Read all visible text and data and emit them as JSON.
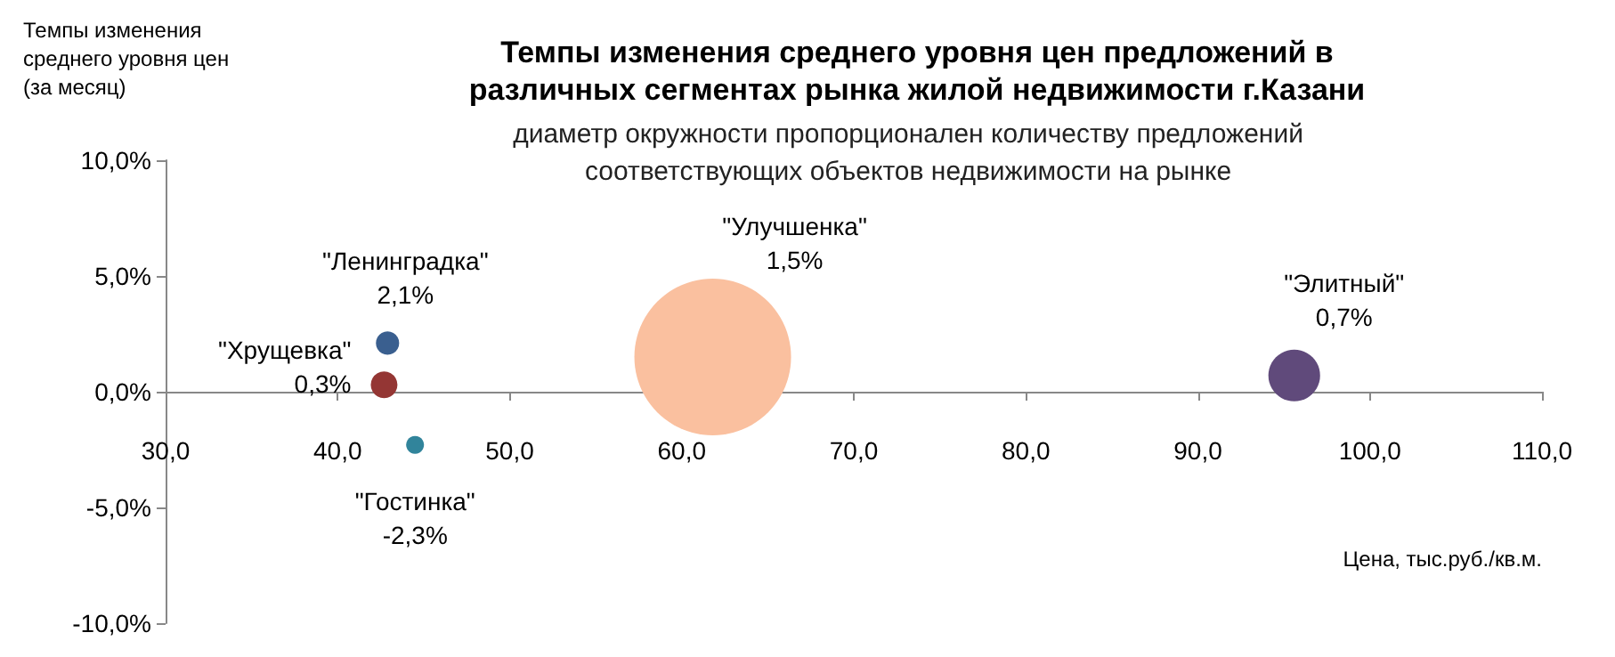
{
  "chart_data": {
    "type": "bubble",
    "title": "Темпы изменения среднего уровня цен предложений в различных сегментах рынка жилой недвижимости г.Казани",
    "subtitle": "диаметр окружности пропорционален количеству предложений соответствующих объектов недвижимости на рынке",
    "xlabel": "Цена, тыс.руб./кв.м.",
    "ylabel": "Темпы изменения среднего уровня цен (за месяц)",
    "series": [
      {
        "name": "\"Ленинградка\"",
        "color": "#3a5f8f",
        "x": [
          42.9
        ],
        "values": [
          2.1
        ],
        "sizes": [
          0.022
        ],
        "value_labels": [
          "2,1%"
        ]
      },
      {
        "name": "\"Хрущевка\"",
        "color": "#943634",
        "x": [
          42.7
        ],
        "values": [
          0.3
        ],
        "sizes": [
          0.029
        ],
        "value_labels": [
          "0,3%"
        ]
      },
      {
        "name": "\"Гостинка\"",
        "color": "#31849b",
        "x": [
          44.5
        ],
        "values": [
          -2.3
        ],
        "sizes": [
          0.013
        ],
        "value_labels": [
          "-2,3%"
        ]
      },
      {
        "name": "\"Улучшенка\"",
        "color": "#fac09f",
        "x": [
          61.8
        ],
        "values": [
          1.5
        ],
        "sizes": [
          1
        ],
        "value_labels": [
          "1,5%"
        ]
      },
      {
        "name": "\"Элитный\"",
        "color": "#604a7b",
        "x": [
          95.6
        ],
        "values": [
          0.7
        ],
        "sizes": [
          0.109
        ],
        "value_labels": [
          "0,7%"
        ]
      }
    ],
    "xlim": [
      30,
      110
    ],
    "xticks": [
      {
        "value": 30,
        "label": "30,0"
      },
      {
        "value": 40,
        "label": "40,0"
      },
      {
        "value": 50,
        "label": "50,0"
      },
      {
        "value": 60,
        "label": "60,0"
      },
      {
        "value": 70,
        "label": "70,0"
      },
      {
        "value": 80,
        "label": "80,0"
      },
      {
        "value": 90,
        "label": "90,0"
      },
      {
        "value": 100,
        "label": "100,0"
      },
      {
        "value": 110,
        "label": "110,0"
      }
    ],
    "ylim": [
      -10,
      10
    ],
    "yticks": [
      {
        "value": -10,
        "label": "-10,0%"
      },
      {
        "value": -5,
        "label": "-5,0%"
      },
      {
        "value": 0,
        "label": "0,0%"
      },
      {
        "value": 5,
        "label": "5,0%"
      },
      {
        "value": 10,
        "label": "10,0%"
      }
    ],
    "grid": false,
    "legend": false
  }
}
